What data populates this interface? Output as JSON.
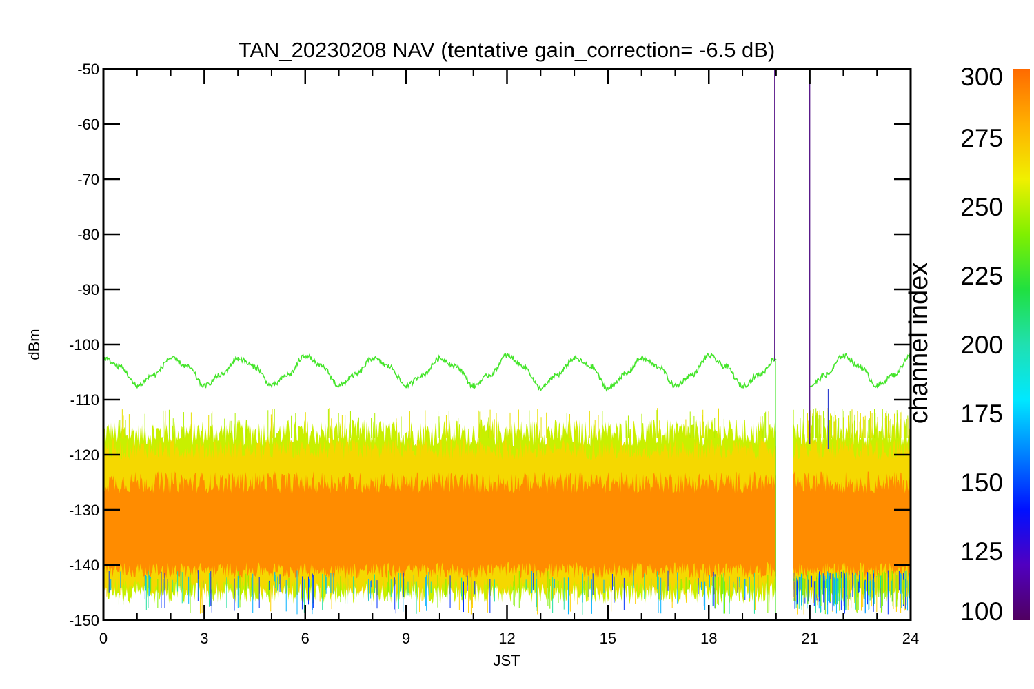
{
  "chart_data": {
    "type": "line",
    "title": "TAN_20230208 NAV (tentative gain_correction= -6.5 dB)",
    "xlabel": "JST",
    "ylabel": "dBm",
    "xlim": [
      0,
      24
    ],
    "ylim": [
      -150,
      -50
    ],
    "x_ticks": [
      "0",
      "3",
      "6",
      "9",
      "12",
      "15",
      "18",
      "21",
      "24"
    ],
    "y_ticks": [
      "-50",
      "-60",
      "-70",
      "-80",
      "-90",
      "-100",
      "-110",
      "-120",
      "-130",
      "-140",
      "-150"
    ],
    "series": [
      {
        "color": "#44e52a",
        "x": [
          0,
          0.5,
          1,
          1.5,
          2,
          2.5,
          3,
          3.5,
          4,
          4.5,
          5,
          5.5,
          6,
          6.5,
          7,
          7.5,
          8,
          8.5,
          9,
          9.5,
          10,
          10.5,
          11,
          11.5,
          12,
          12.5,
          13,
          13.5,
          14,
          14.5,
          15,
          15.5,
          16,
          16.5,
          17,
          17.5,
          18,
          18.5,
          19,
          19.5,
          20,
          20.5,
          21,
          21.5,
          22,
          22.5,
          23,
          23.5,
          24
        ],
        "y": [
          -102.5,
          -104,
          -107.5,
          -105.5,
          -102.5,
          -104,
          -107.5,
          -105.5,
          -102.5,
          -104,
          -107.5,
          -105.5,
          -102,
          -104,
          -107.5,
          -105.5,
          -102.5,
          -104,
          -107.5,
          -105.5,
          -102.5,
          -104,
          -107.5,
          -105.5,
          -102,
          -104,
          -108,
          -105.5,
          -102.5,
          -104,
          -108,
          -105.5,
          -102.5,
          -104,
          -107.5,
          -105.5,
          -102,
          -104,
          -107.5,
          -105.5,
          -102.5,
          null,
          -107.5,
          -105.5,
          -102,
          -104,
          -107.5,
          -105.5,
          -102
        ]
      }
    ],
    "band": {
      "x_gap": [
        20,
        20.5
      ],
      "layers": [
        {
          "color": "#c8f000",
          "y_range": [
            -145,
            -116
          ]
        },
        {
          "color": "#f5d800",
          "y_range": [
            -144,
            -119
          ]
        },
        {
          "color": "#ff8c00",
          "y_range": [
            -141,
            -125
          ]
        }
      ]
    },
    "colorbar": {
      "label": "channel index",
      "range": [
        100,
        300
      ],
      "ticks": [
        "300",
        "275",
        "250",
        "225",
        "200",
        "175",
        "150",
        "125",
        "100"
      ],
      "colors": [
        "#ff6a00",
        "#ffb000",
        "#f0f000",
        "#80f000",
        "#20e040",
        "#20e0b0",
        "#00e8ff",
        "#0080ff",
        "#0010ff",
        "#5000c0",
        "#500060"
      ]
    }
  }
}
